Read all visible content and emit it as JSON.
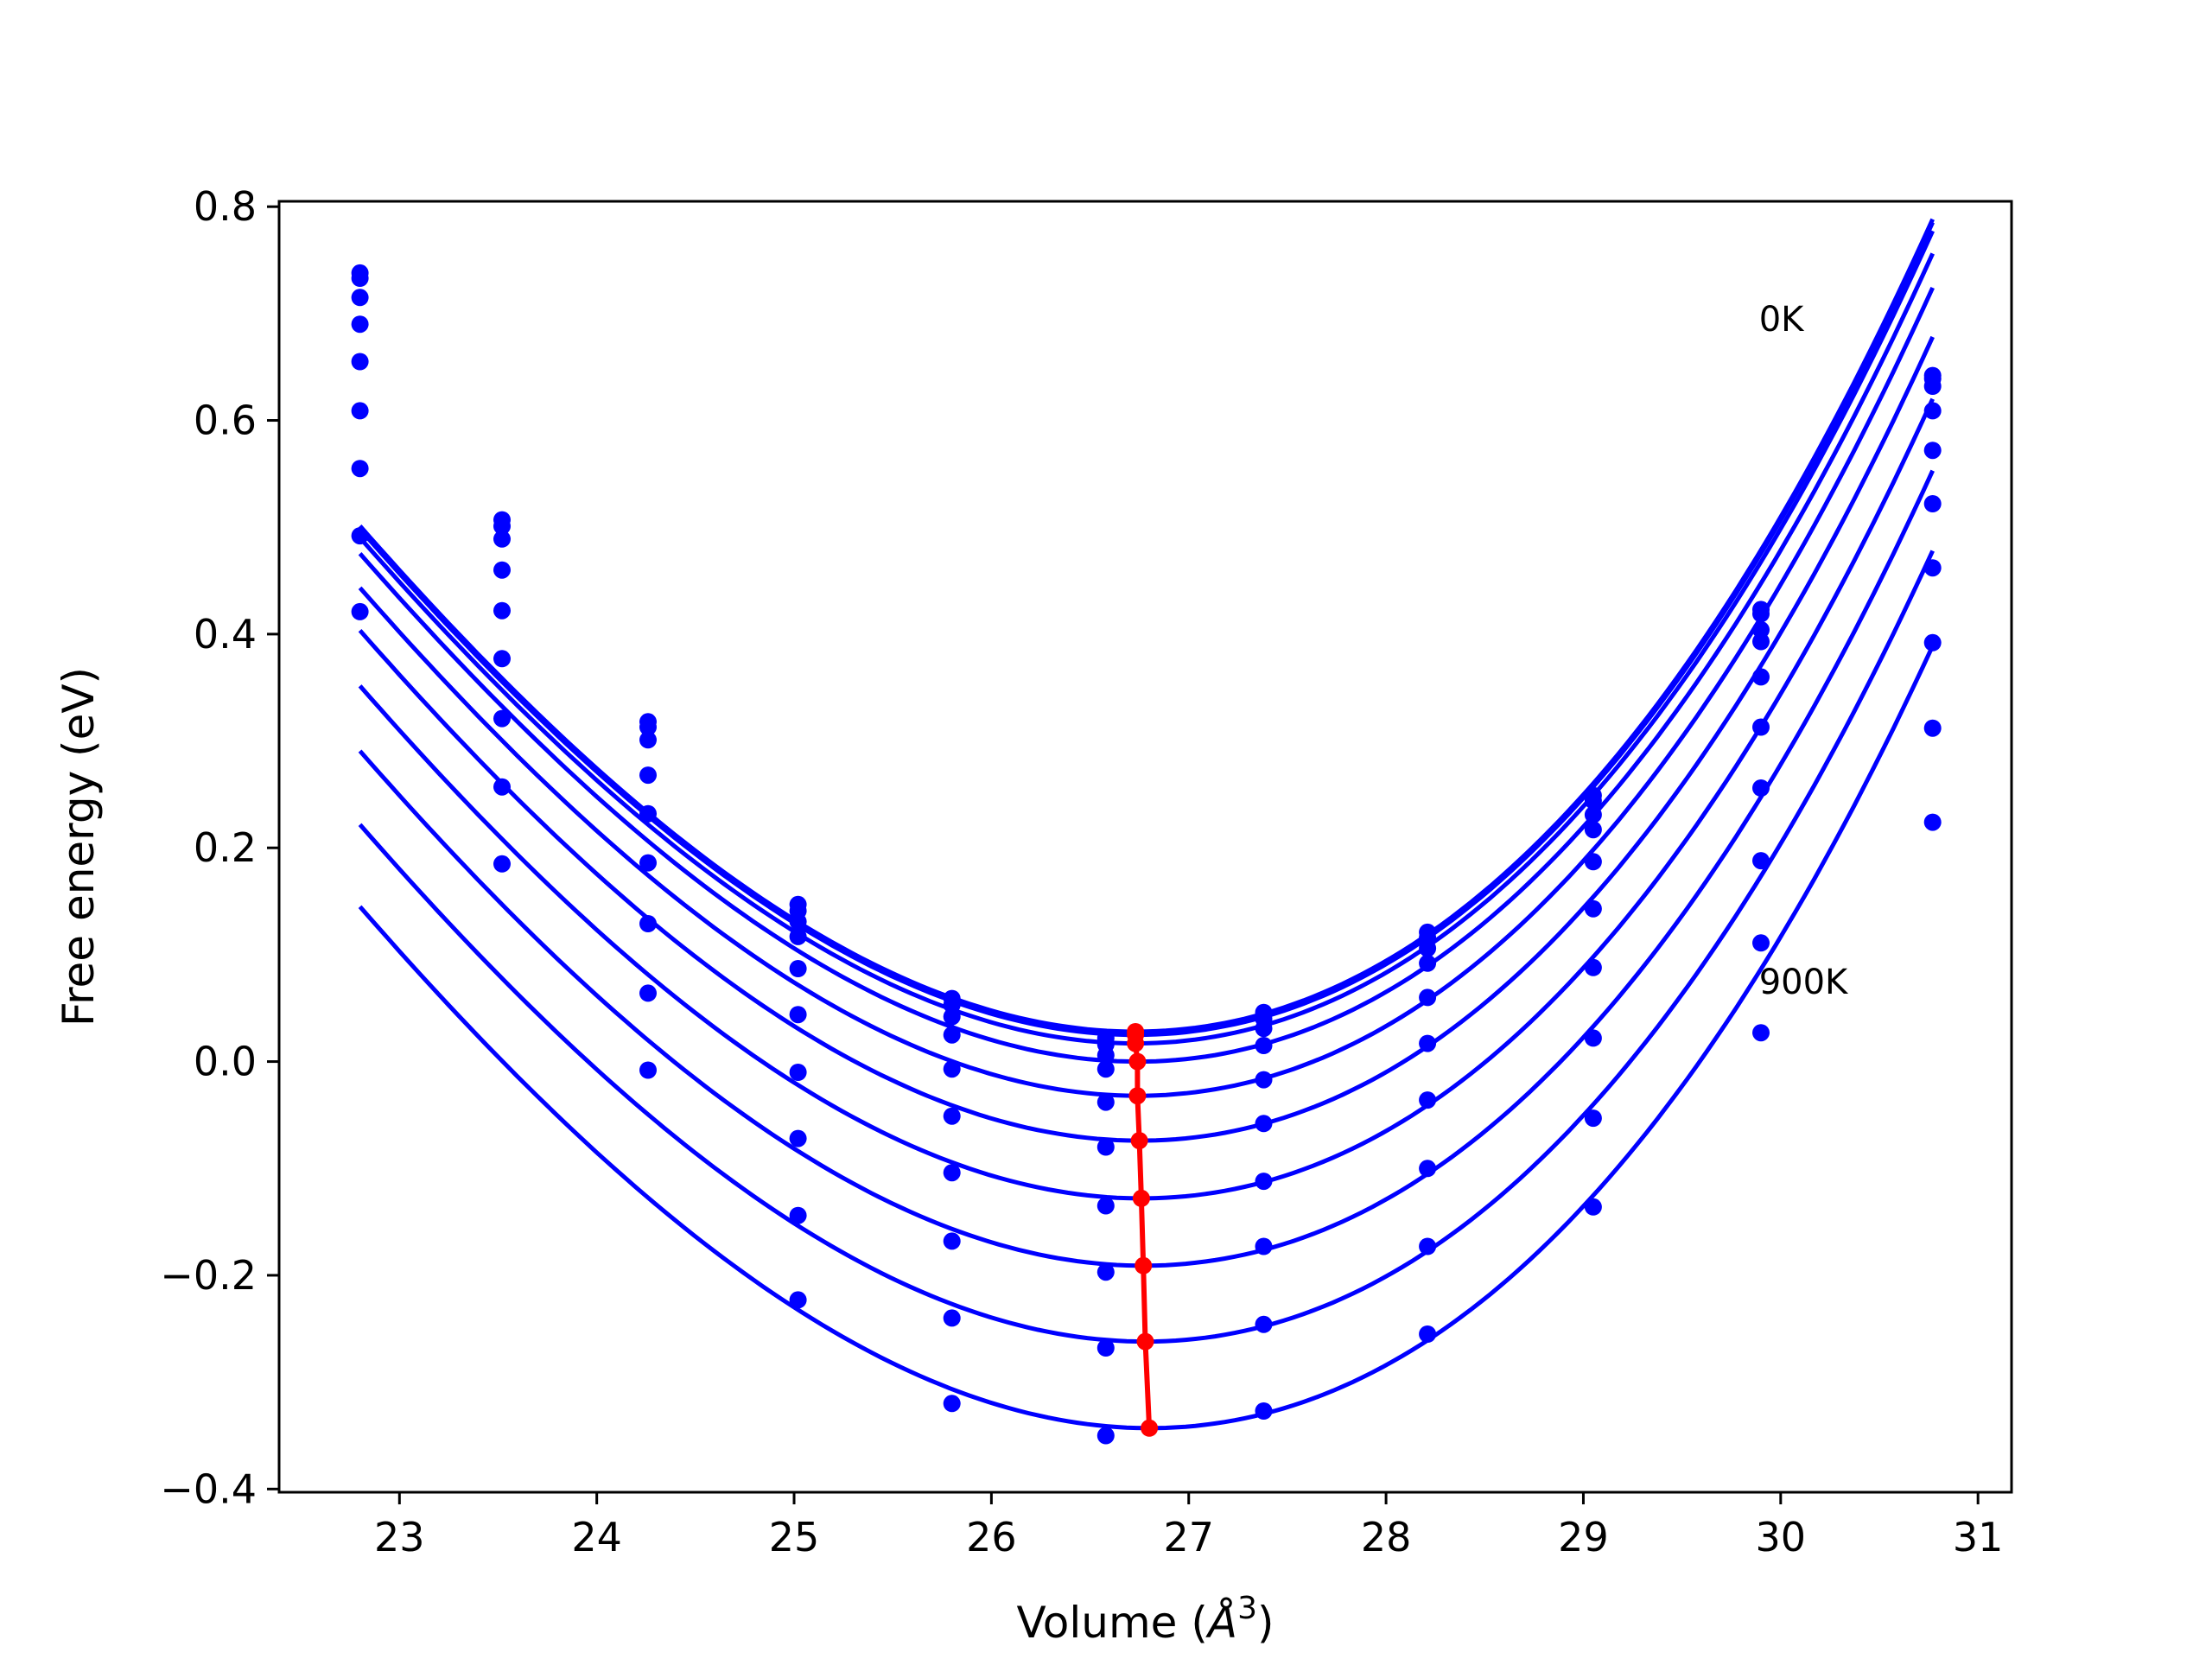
{
  "chart_data": {
    "type": "line",
    "title": "",
    "xlabel": "Volume (",
    "xlabel_unit": "Å",
    "xlabel_exp": "3",
    "xlabel_close": ")",
    "ylabel": "Free energy (eV)",
    "xlim": [
      22.39,
      31.17
    ],
    "ylim": [
      -0.403,
      0.805
    ],
    "xticks": [
      23,
      24,
      25,
      26,
      27,
      28,
      29,
      30,
      31
    ],
    "yticks": [
      -0.4,
      -0.2,
      0.0,
      0.2,
      0.4,
      0.6,
      0.8
    ],
    "ytick_labels": [
      "−0.4",
      "−0.2",
      "0.0",
      "0.2",
      "0.4",
      "0.6",
      "0.8"
    ],
    "xtick_labels": [
      "23",
      "24",
      "25",
      "26",
      "27",
      "28",
      "29",
      "30",
      "31"
    ],
    "grid": false,
    "annotations": [
      {
        "text": "0K",
        "x": 29.89,
        "y": 0.695
      },
      {
        "text": "900K",
        "x": 29.89,
        "y": 0.075
      }
    ],
    "curve_color": "#0000ff",
    "minima_color": "#ff0000",
    "volumes": [
      22.8,
      23.52,
      24.26,
      25.02,
      25.8,
      26.58,
      27.38,
      28.21,
      29.05,
      29.9,
      30.77
    ],
    "series": [
      {
        "E0": 0.028,
        "V0": 26.73,
        "a": 0.0385,
        "b": 0.002,
        "points": [
          0.738,
          0.507,
          0.318,
          0.147,
          0.059,
          0.022,
          0.046,
          0.121,
          0.249,
          0.423,
          0.642
        ]
      },
      {
        "E0": 0.025,
        "V0": 26.73,
        "a": 0.0385,
        "b": 0.002,
        "points": [
          0.733,
          0.501,
          0.313,
          0.141,
          0.053,
          0.016,
          0.04,
          0.116,
          0.244,
          0.419,
          0.639
        ]
      },
      {
        "E0": 0.017,
        "V0": 26.73,
        "a": 0.0385,
        "b": 0.002,
        "points": [
          0.715,
          0.489,
          0.301,
          0.131,
          0.042,
          0.006,
          0.031,
          0.106,
          0.231,
          0.404,
          0.632
        ]
      },
      {
        "E0": 0.0,
        "V0": 26.74,
        "a": 0.0385,
        "b": 0.002,
        "points": [
          0.69,
          0.46,
          0.268,
          0.117,
          0.025,
          -0.007,
          0.015,
          0.092,
          0.217,
          0.393,
          0.609
        ]
      },
      {
        "E0": -0.032,
        "V0": 26.74,
        "a": 0.0385,
        "b": 0.002,
        "points": [
          0.655,
          0.422,
          0.232,
          0.087,
          -0.007,
          -0.038,
          -0.017,
          0.06,
          0.187,
          0.36,
          0.572
        ]
      },
      {
        "E0": -0.074,
        "V0": 26.75,
        "a": 0.0385,
        "b": 0.002,
        "points": [
          0.609,
          0.377,
          0.186,
          0.044,
          -0.051,
          -0.08,
          -0.058,
          0.017,
          0.143,
          0.313,
          0.522
        ]
      },
      {
        "E0": -0.128,
        "V0": 26.76,
        "a": 0.0385,
        "b": 0.002,
        "points": [
          0.555,
          0.321,
          0.129,
          -0.01,
          -0.104,
          -0.135,
          -0.112,
          -0.036,
          0.088,
          0.256,
          0.462
        ]
      },
      {
        "E0": -0.191,
        "V0": 26.77,
        "a": 0.0385,
        "b": 0.002,
        "points": [
          0.492,
          0.257,
          0.064,
          -0.072,
          -0.168,
          -0.197,
          -0.173,
          -0.1,
          0.022,
          0.188,
          0.392
        ]
      },
      {
        "E0": -0.262,
        "V0": 26.78,
        "a": 0.0385,
        "b": 0.002,
        "points": [
          0.421,
          0.185,
          -0.008,
          -0.144,
          -0.24,
          -0.268,
          -0.246,
          -0.173,
          -0.053,
          0.111,
          0.312
        ]
      },
      {
        "E0": -0.343,
        "V0": 26.8,
        "a": 0.0385,
        "b": 0.002,
        "points": [
          null,
          null,
          null,
          -0.223,
          -0.32,
          -0.35,
          -0.327,
          -0.255,
          -0.136,
          0.027,
          0.224
        ]
      }
    ],
    "minima": {
      "x": [
        26.73,
        26.73,
        26.73,
        26.74,
        26.74,
        26.75,
        26.76,
        26.77,
        26.78,
        26.8
      ],
      "y": [
        0.028,
        0.025,
        0.017,
        0.0,
        -0.032,
        -0.074,
        -0.128,
        -0.191,
        -0.262,
        -0.343
      ]
    }
  }
}
